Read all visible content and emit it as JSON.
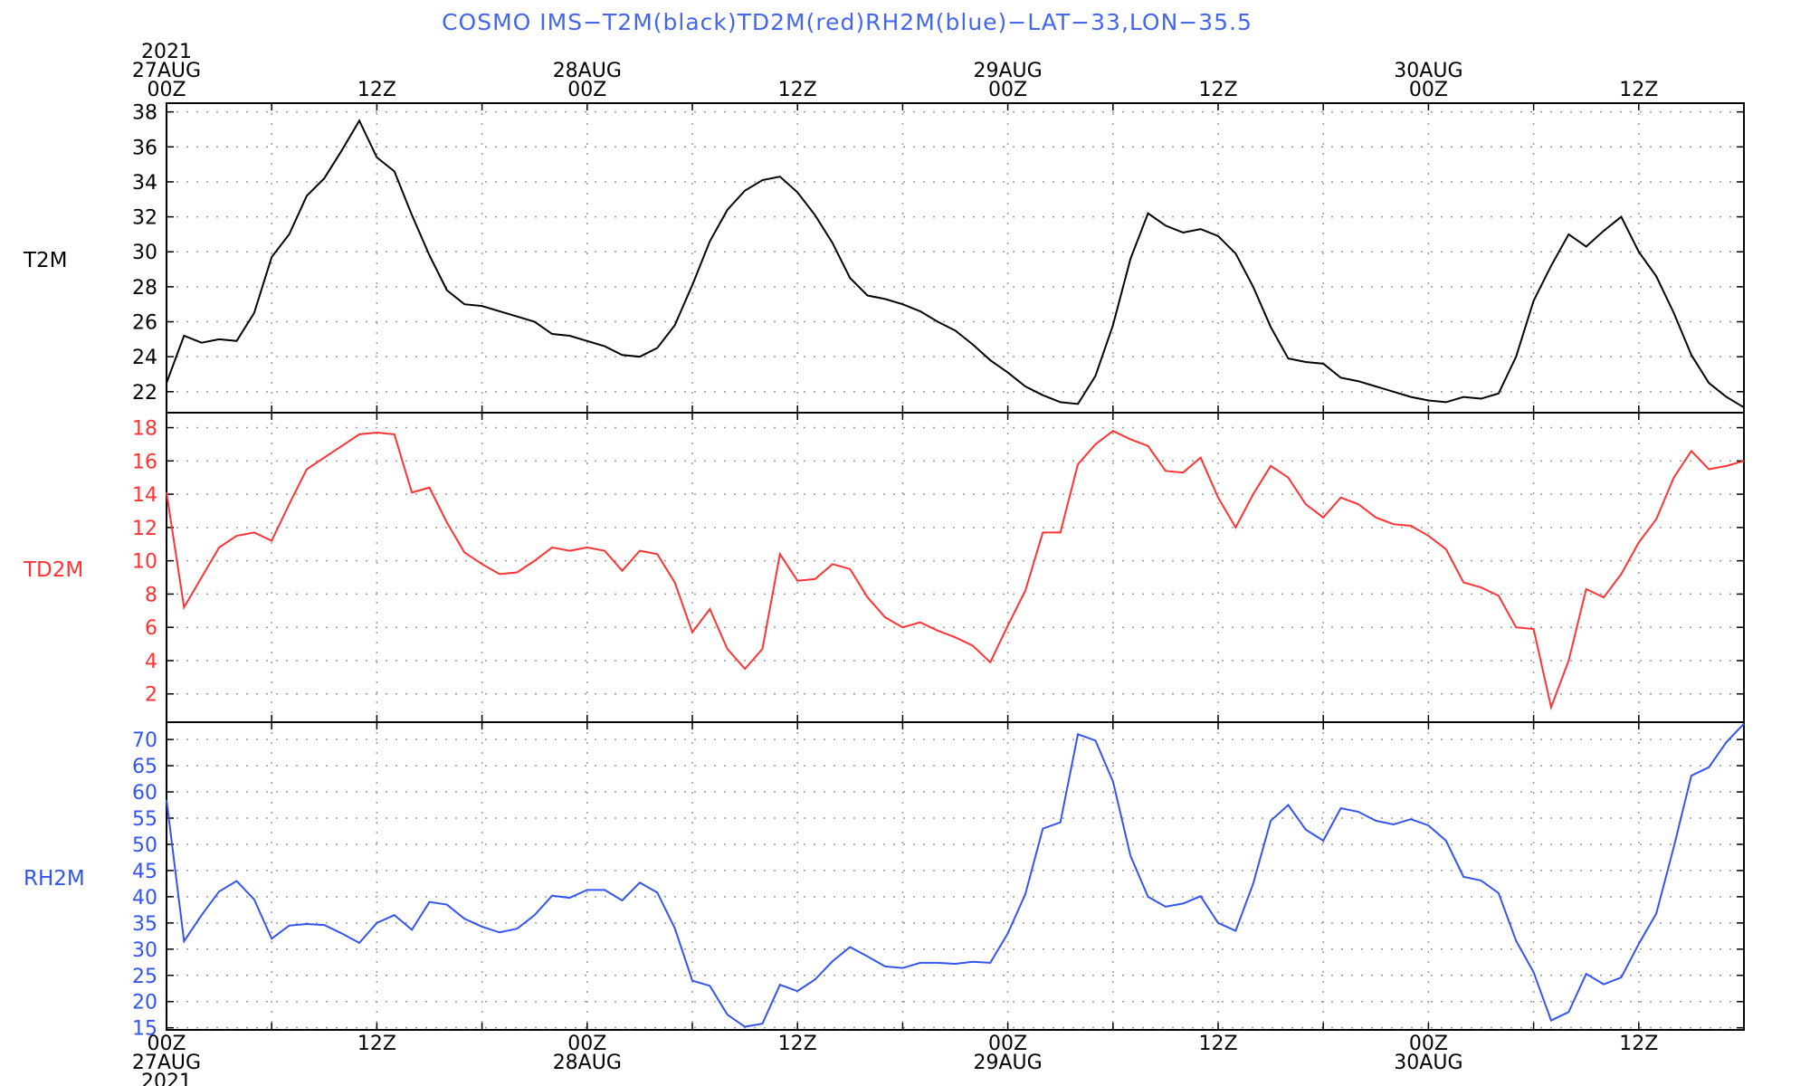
{
  "title": "COSMO IMS−T2M(black)TD2M(red)RH2M(blue)−LAT−33,LON−35.5",
  "time_axis": {
    "x_range_hours": [
      0,
      90
    ],
    "top_ticks": [
      {
        "h": 0,
        "lines": [
          "2021",
          "27AUG",
          "00Z"
        ]
      },
      {
        "h": 12,
        "lines": [
          "12Z"
        ]
      },
      {
        "h": 24,
        "lines": [
          "28AUG",
          "00Z"
        ]
      },
      {
        "h": 36,
        "lines": [
          "12Z"
        ]
      },
      {
        "h": 48,
        "lines": [
          "29AUG",
          "00Z"
        ]
      },
      {
        "h": 60,
        "lines": [
          "12Z"
        ]
      },
      {
        "h": 72,
        "lines": [
          "30AUG",
          "00Z"
        ]
      },
      {
        "h": 84,
        "lines": [
          "12Z"
        ]
      }
    ],
    "bottom_ticks": [
      {
        "h": 0,
        "lines": [
          "00Z",
          "27AUG",
          "2021"
        ]
      },
      {
        "h": 12,
        "lines": [
          "12Z"
        ]
      },
      {
        "h": 24,
        "lines": [
          "00Z",
          "28AUG"
        ]
      },
      {
        "h": 36,
        "lines": [
          "12Z"
        ]
      },
      {
        "h": 48,
        "lines": [
          "00Z",
          "29AUG"
        ]
      },
      {
        "h": 60,
        "lines": [
          "12Z"
        ]
      },
      {
        "h": 72,
        "lines": [
          "00Z",
          "30AUG"
        ]
      },
      {
        "h": 84,
        "lines": [
          "12Z"
        ]
      }
    ]
  },
  "colors": {
    "t2m": "#000000",
    "td2m": "#ff3333",
    "rh2m": "#3355ee",
    "title": "#4466ee",
    "grid": "#999999"
  },
  "chart_data": [
    {
      "type": "line",
      "panel": "T2M",
      "ylabel": "T2M",
      "ylim": [
        20.8,
        38.5
      ],
      "yticks": [
        22,
        24,
        26,
        28,
        30,
        32,
        34,
        36,
        38
      ],
      "grid": true,
      "series": [
        {
          "name": "T2M",
          "color": "#000000",
          "values": [
            22.5,
            25.2,
            24.8,
            25.0,
            24.9,
            26.5,
            29.7,
            31.0,
            33.2,
            34.2,
            35.8,
            37.5,
            35.4,
            34.6,
            32.1,
            29.8,
            27.8,
            27.0,
            26.9,
            26.6,
            26.3,
            26.0,
            25.3,
            25.2,
            24.9,
            24.6,
            24.1,
            24.0,
            24.5,
            25.8,
            28.1,
            30.6,
            32.4,
            33.5,
            34.1,
            34.3,
            33.4,
            32.1,
            30.5,
            28.5,
            27.5,
            27.3,
            27.0,
            26.6,
            26.0,
            25.5,
            24.7,
            23.8,
            23.1,
            22.3,
            21.8,
            21.4,
            21.3,
            22.9,
            25.8,
            29.6,
            32.2,
            31.5,
            31.1,
            31.3,
            30.9,
            29.9,
            28.0,
            25.7,
            23.9,
            23.7,
            23.6,
            22.8,
            22.6,
            22.3,
            22.0,
            21.7,
            21.5,
            21.4,
            21.7,
            21.6,
            21.9,
            24.0,
            27.2,
            29.2,
            31.0,
            30.3,
            31.2,
            32.0,
            30.0,
            28.6,
            26.5,
            24.1,
            22.5,
            21.7,
            21.1
          ]
        }
      ]
    },
    {
      "type": "line",
      "panel": "TD2M",
      "ylabel": "TD2M",
      "ylim": [
        0.3,
        18.9
      ],
      "yticks": [
        2,
        4,
        6,
        8,
        10,
        12,
        14,
        16,
        18
      ],
      "grid": true,
      "series": [
        {
          "name": "TD2M",
          "color": "#ff3333",
          "values": [
            14.1,
            7.2,
            9.0,
            10.8,
            11.5,
            11.7,
            11.2,
            13.4,
            15.5,
            16.2,
            16.9,
            17.6,
            17.7,
            17.6,
            14.1,
            14.4,
            12.3,
            10.5,
            9.8,
            9.2,
            9.3,
            10.0,
            10.8,
            10.6,
            10.8,
            10.6,
            9.4,
            10.6,
            10.4,
            8.7,
            5.7,
            7.1,
            4.7,
            3.5,
            4.7,
            10.4,
            8.8,
            8.9,
            9.8,
            9.5,
            7.8,
            6.6,
            6.0,
            6.3,
            5.8,
            5.4,
            4.9,
            3.9,
            6.1,
            8.2,
            11.7,
            11.7,
            15.8,
            17.0,
            17.8,
            17.3,
            16.9,
            15.4,
            15.3,
            16.2,
            13.8,
            12.0,
            14.0,
            15.7,
            15.0,
            13.4,
            12.6,
            13.8,
            13.4,
            12.6,
            12.2,
            12.1,
            11.5,
            10.7,
            8.7,
            8.4,
            7.9,
            6.0,
            5.9,
            1.2,
            4.0,
            8.3,
            7.8,
            9.2,
            11.1,
            12.5,
            15.0,
            16.6,
            15.5,
            15.7,
            16.0
          ]
        }
      ]
    },
    {
      "type": "line",
      "panel": "RH2M",
      "ylabel": "RH2M",
      "ylim": [
        14.6,
        73.3
      ],
      "yticks": [
        15,
        20,
        25,
        30,
        35,
        40,
        45,
        50,
        55,
        60,
        65,
        70
      ],
      "grid": true,
      "series": [
        {
          "name": "RH2M",
          "color": "#3355ee",
          "values": [
            58.5,
            31.5,
            36.5,
            41.0,
            43.0,
            39.5,
            32.0,
            34.5,
            34.8,
            34.6,
            33.0,
            31.2,
            35.0,
            36.5,
            33.7,
            39.0,
            38.5,
            35.8,
            34.3,
            33.2,
            33.9,
            36.5,
            40.2,
            39.8,
            41.3,
            41.3,
            39.3,
            42.7,
            40.8,
            34.0,
            24.0,
            23.0,
            17.5,
            15.2,
            15.8,
            23.2,
            22.0,
            24.2,
            27.7,
            30.4,
            28.6,
            26.7,
            26.4,
            27.4,
            27.4,
            27.2,
            27.6,
            27.4,
            33.0,
            40.5,
            53.0,
            54.2,
            71.0,
            69.8,
            62.0,
            47.8,
            40.0,
            38.1,
            38.7,
            40.1,
            35.0,
            33.5,
            42.5,
            54.5,
            57.5,
            52.8,
            50.7,
            56.9,
            56.2,
            54.5,
            53.8,
            54.8,
            53.6,
            50.7,
            43.8,
            43.1,
            40.7,
            31.6,
            25.6,
            16.4,
            18.0,
            25.3,
            23.3,
            24.6,
            31.0,
            36.8,
            49.5,
            63.1,
            64.7,
            69.5,
            73.0
          ]
        }
      ]
    }
  ]
}
